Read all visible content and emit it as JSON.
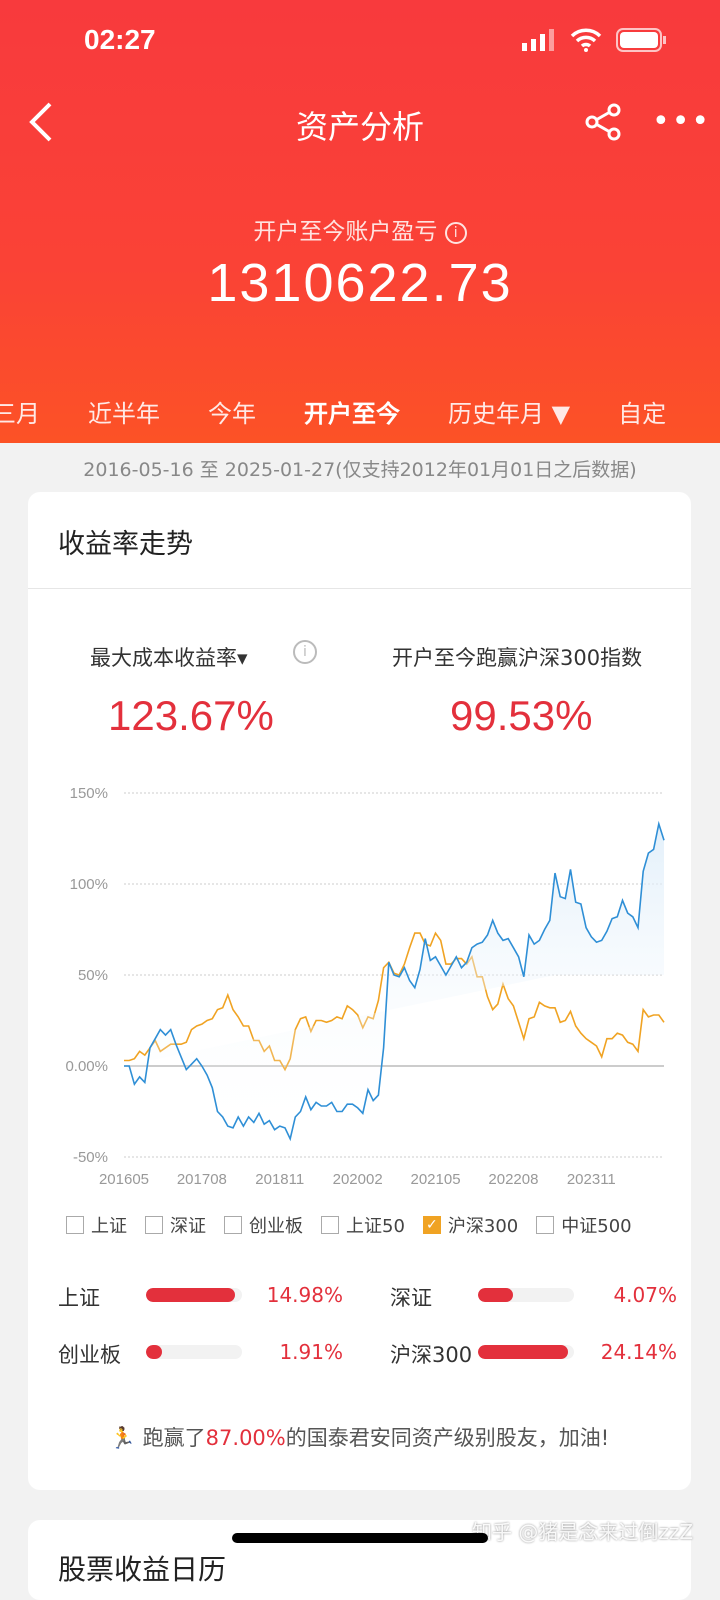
{
  "status": {
    "time": "02:27"
  },
  "nav": {
    "title": "资产分析"
  },
  "summary": {
    "label": "开户至今账户盈亏",
    "value": "1310622.73"
  },
  "tabs": [
    "三月",
    "近半年",
    "今年",
    "开户至今",
    "历史年月 ▼",
    "自定"
  ],
  "active_tab": "开户至今",
  "date_range": "2016-05-16 至 2025-01-27(仅支持2012年01月01日之后数据)",
  "card": {
    "title": "收益率走势",
    "metric_left": {
      "label": "最大成本收益率",
      "value": "123.67%"
    },
    "metric_right": {
      "label": "开户至今跑赢沪深300指数",
      "value": "99.53%"
    }
  },
  "chart_data": {
    "type": "line",
    "x_range": [
      "201605",
      "202501"
    ],
    "x_frequency": "monthly",
    "x_ticks": [
      "201605",
      "201708",
      "201811",
      "202002",
      "202105",
      "202208",
      "202311"
    ],
    "y_ticks": [
      "150%",
      "100%",
      "50%",
      "0.00%",
      "-50%"
    ],
    "ylim": [
      -50,
      150
    ],
    "grid": true,
    "series": [
      {
        "color": "#2f8fd6",
        "area": true,
        "values": [
          0,
          0,
          -10,
          -6,
          -9,
          10,
          15,
          20,
          17,
          20,
          12,
          5,
          -2,
          1,
          4,
          0,
          -5,
          -12,
          -25,
          -28,
          -33,
          -34,
          -28,
          -33,
          -28,
          -31,
          -26,
          -32,
          -30,
          -35,
          -33,
          -34,
          -40,
          -28,
          -25,
          -17,
          -24,
          -20,
          -22,
          -22,
          -20,
          -25,
          -25,
          -21,
          -21,
          -23,
          -26,
          -13,
          -19,
          -16,
          10,
          57,
          50,
          49,
          54,
          47,
          43,
          53,
          70,
          58,
          60,
          55,
          50,
          55,
          60,
          54,
          57,
          65,
          67,
          68,
          72,
          80,
          73,
          69,
          70,
          65,
          60,
          49,
          72,
          67,
          69,
          75,
          80,
          106,
          93,
          92,
          108,
          90,
          89,
          76,
          71,
          68,
          69,
          74,
          81,
          82,
          91,
          84,
          82,
          76,
          107,
          117,
          119,
          133,
          124
        ]
      },
      {
        "name": "沪深300",
        "color": "#f0a323",
        "values": [
          3,
          3,
          4,
          8,
          6,
          10,
          14,
          8,
          10,
          12,
          12,
          12,
          13,
          20,
          22,
          23,
          25,
          26,
          31,
          32,
          39,
          31,
          27,
          22,
          22,
          14,
          14,
          8,
          11,
          3,
          3,
          -2,
          4,
          20,
          26,
          27,
          19,
          25,
          25,
          24,
          25,
          27,
          26,
          33,
          31,
          28,
          21,
          27,
          26,
          36,
          54,
          57,
          51,
          50,
          56,
          65,
          73,
          73,
          67,
          66,
          73,
          69,
          56,
          56,
          59,
          59,
          56,
          60,
          49,
          49,
          38,
          31,
          34,
          45,
          37,
          33,
          24,
          15,
          26,
          27,
          35,
          33,
          32,
          32,
          24,
          25,
          30,
          22,
          18,
          15,
          13,
          11,
          5,
          15,
          15,
          18,
          17,
          13,
          12,
          8,
          31,
          27,
          28,
          28,
          24
        ]
      }
    ]
  },
  "legend": [
    {
      "label": "上证",
      "checked": false
    },
    {
      "label": "深证",
      "checked": false
    },
    {
      "label": "创业板",
      "checked": false
    },
    {
      "label": "上证50",
      "checked": false
    },
    {
      "label": "沪深300",
      "checked": true
    },
    {
      "label": "中证500",
      "checked": false
    }
  ],
  "indices": [
    {
      "label": "上证",
      "value": "14.98%",
      "fill": 0.93
    },
    {
      "label": "深证",
      "value": "4.07%",
      "fill": 0.36
    },
    {
      "label": "创业板",
      "value": "1.91%",
      "fill": 0.17
    },
    {
      "label": "沪深300",
      "value": "24.14%",
      "fill": 0.94
    }
  ],
  "footer": {
    "pre": "跑赢了",
    "pct": "87.00%",
    "post": "的国泰君安同资产级别股友，加油!"
  },
  "next_card": {
    "title": "股票收益日历"
  },
  "watermark": "知乎 @猪是念来过倒zzZ"
}
